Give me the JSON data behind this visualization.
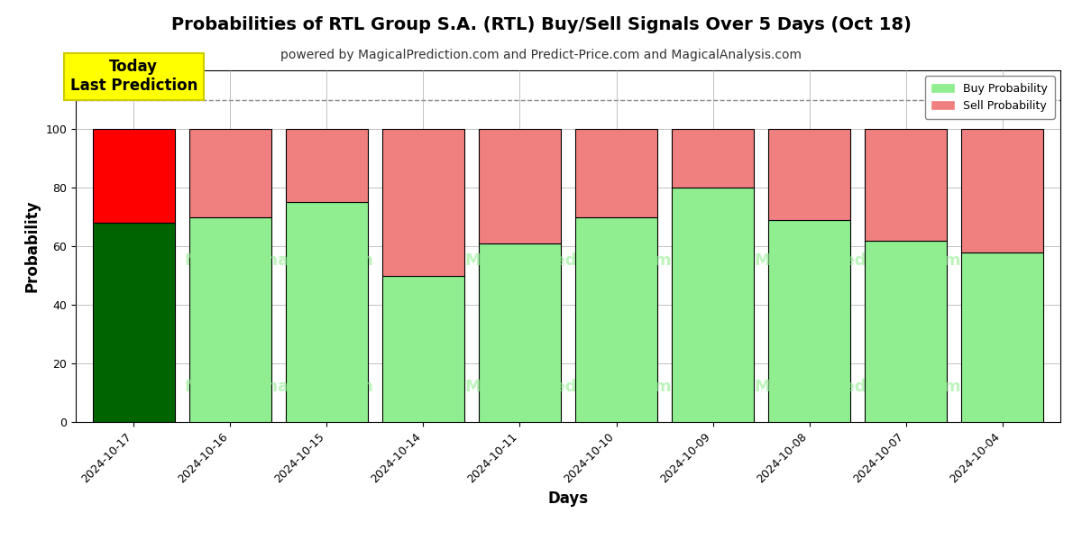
{
  "title": "Probabilities of RTL Group S.A. (RTL) Buy/Sell Signals Over 5 Days (Oct 18)",
  "subtitle": "powered by MagicalPrediction.com and Predict-Price.com and MagicalAnalysis.com",
  "xlabel": "Days",
  "ylabel": "Probability",
  "dates": [
    "2024-10-17",
    "2024-10-16",
    "2024-10-15",
    "2024-10-14",
    "2024-10-11",
    "2024-10-10",
    "2024-10-09",
    "2024-10-08",
    "2024-10-07",
    "2024-10-04"
  ],
  "buy_values": [
    68,
    70,
    75,
    50,
    61,
    70,
    80,
    69,
    62,
    58
  ],
  "sell_values": [
    32,
    30,
    25,
    50,
    39,
    30,
    20,
    31,
    38,
    42
  ],
  "today_bar_buy_color": "#006400",
  "today_bar_sell_color": "#FF0000",
  "other_bar_buy_color": "#90EE90",
  "other_bar_sell_color": "#F08080",
  "bar_edge_color": "#000000",
  "ylim": [
    0,
    120
  ],
  "yticks": [
    0,
    20,
    40,
    60,
    80,
    100
  ],
  "dashed_line_y": 110,
  "dashed_line_color": "#888888",
  "background_color": "#ffffff",
  "plot_bg_color": "#ffffff",
  "annotation_text": "Today\nLast Prediction",
  "annotation_bg": "#FFFF00",
  "annotation_edge": "#CCCC00",
  "legend_buy_label": "Buy Probability",
  "legend_sell_label": "Sell Probability",
  "title_fontsize": 14,
  "subtitle_fontsize": 10,
  "axis_label_fontsize": 12,
  "tick_fontsize": 9,
  "bar_width": 0.85
}
